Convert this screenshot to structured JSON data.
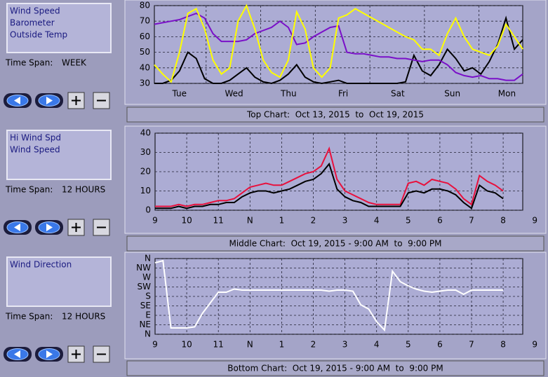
{
  "panels": [
    {
      "legend_kind": "week",
      "time_span_label": "Time Span:",
      "time_span": "WEEK",
      "caption": "Top Chart:  Oct 13, 2015  to  Oct 19, 2015",
      "chart": {
        "ylim": [
          30,
          80
        ],
        "yticks": [
          30,
          40,
          50,
          60,
          70,
          80
        ],
        "x_labels": [
          "Tue",
          "Wed",
          "Thu",
          "Fri",
          "Sat",
          "Sun",
          "Mon"
        ],
        "series": [
          {
            "name": "Wind Speed",
            "color": "#000000",
            "values": [
              30,
              30,
              32,
              38,
              50,
              46,
              33,
              30,
              30,
              32,
              36,
              40,
              34,
              31,
              30,
              32,
              36,
              42,
              34,
              31,
              30,
              31,
              32,
              30,
              30,
              30,
              30,
              30,
              30,
              30,
              31,
              48,
              38,
              35,
              42,
              52,
              46,
              38,
              40,
              36,
              44,
              55,
              72,
              52,
              58
            ]
          },
          {
            "name": "Barometer",
            "color": "#7a10c8",
            "values": [
              68,
              69,
              70,
              71,
              73,
              75,
              72,
              62,
              57,
              57,
              57,
              58,
              62,
              64,
              66,
              70,
              66,
              55,
              56,
              60,
              63,
              66,
              67,
              50,
              49,
              49,
              48,
              47,
              47,
              46,
              46,
              45,
              44,
              45,
              45,
              42,
              37,
              35,
              34,
              35,
              33,
              33,
              32,
              32,
              36
            ]
          },
          {
            "name": "Outside Temp",
            "color": "#ffff00",
            "values": [
              42,
              36,
              31,
              50,
              75,
              78,
              65,
              45,
              36,
              40,
              70,
              80,
              65,
              45,
              37,
              34,
              45,
              76,
              65,
              40,
              34,
              40,
              72,
              74,
              78,
              75,
              72,
              69,
              66,
              63,
              60,
              58,
              52,
              52,
              48,
              62,
              72,
              60,
              52,
              50,
              48,
              54,
              68,
              60,
              52
            ]
          }
        ]
      }
    },
    {
      "time_span_label": "Time Span:",
      "time_span": "12 HOURS",
      "caption": "Middle Chart:  Oct 19, 2015 - 9:00 AM  to  9:00 PM",
      "chart": {
        "ylim": [
          0,
          40
        ],
        "yticks": [
          0,
          10,
          20,
          30,
          40
        ],
        "x_labels": [
          "9",
          "10",
          "11",
          "N",
          "1",
          "2",
          "3",
          "4",
          "5",
          "6",
          "7",
          "8",
          "9"
        ],
        "series": [
          {
            "name": "Hi Wind Spd",
            "color": "#e8103c",
            "values": [
              2,
              2,
              2,
              3,
              2,
              3,
              3,
              4,
              5,
              5,
              6,
              9,
              12,
              13,
              14,
              13,
              13,
              15,
              17,
              19,
              20,
              23,
              32,
              16,
              10,
              8,
              6,
              4,
              3,
              3,
              3,
              3,
              14,
              15,
              13,
              16,
              15,
              14,
              11,
              6,
              3,
              18,
              15,
              13,
              10
            ]
          },
          {
            "name": "Wind Speed",
            "color": "#000000",
            "values": [
              1,
              1,
              1,
              2,
              1,
              2,
              2,
              3,
              3,
              4,
              4,
              7,
              9,
              10,
              10,
              9,
              10,
              11,
              13,
              15,
              16,
              19,
              24,
              11,
              7,
              5,
              4,
              2,
              2,
              2,
              2,
              2,
              9,
              10,
              9,
              11,
              11,
              10,
              8,
              4,
              1,
              13,
              10,
              9,
              6
            ]
          }
        ]
      }
    },
    {
      "time_span_label": "Time Span:",
      "time_span": "12 HOURS",
      "caption": "Bottom Chart:  Oct 19, 2015 - 9:00 AM  to  9:00 PM",
      "chart": {
        "ylim": [
          0,
          360
        ],
        "yticks": [
          {
            "value": 360,
            "label": "N"
          },
          {
            "value": 315,
            "label": "NW"
          },
          {
            "value": 270,
            "label": "W"
          },
          {
            "value": 225,
            "label": "SW"
          },
          {
            "value": 180,
            "label": "S"
          },
          {
            "value": 135,
            "label": "SE"
          },
          {
            "value": 90,
            "label": "E"
          },
          {
            "value": 45,
            "label": "NE"
          },
          {
            "value": 0,
            "label": "N"
          }
        ],
        "x_labels": [
          "9",
          "10",
          "11",
          "N",
          "1",
          "2",
          "3",
          "4",
          "5",
          "6",
          "7",
          "8",
          "9"
        ],
        "series": [
          {
            "name": "Wind Direction",
            "color": "#ffffff",
            "values": [
              340,
              350,
              30,
              30,
              30,
              35,
              100,
              150,
              200,
              200,
              215,
              210,
              210,
              210,
              210,
              210,
              210,
              210,
              210,
              210,
              210,
              210,
              205,
              210,
              210,
              205,
              140,
              120,
              60,
              20,
              300,
              250,
              230,
              215,
              205,
              200,
              205,
              210,
              210,
              190,
              210,
              210,
              210,
              210,
              210
            ]
          }
        ]
      }
    }
  ]
}
